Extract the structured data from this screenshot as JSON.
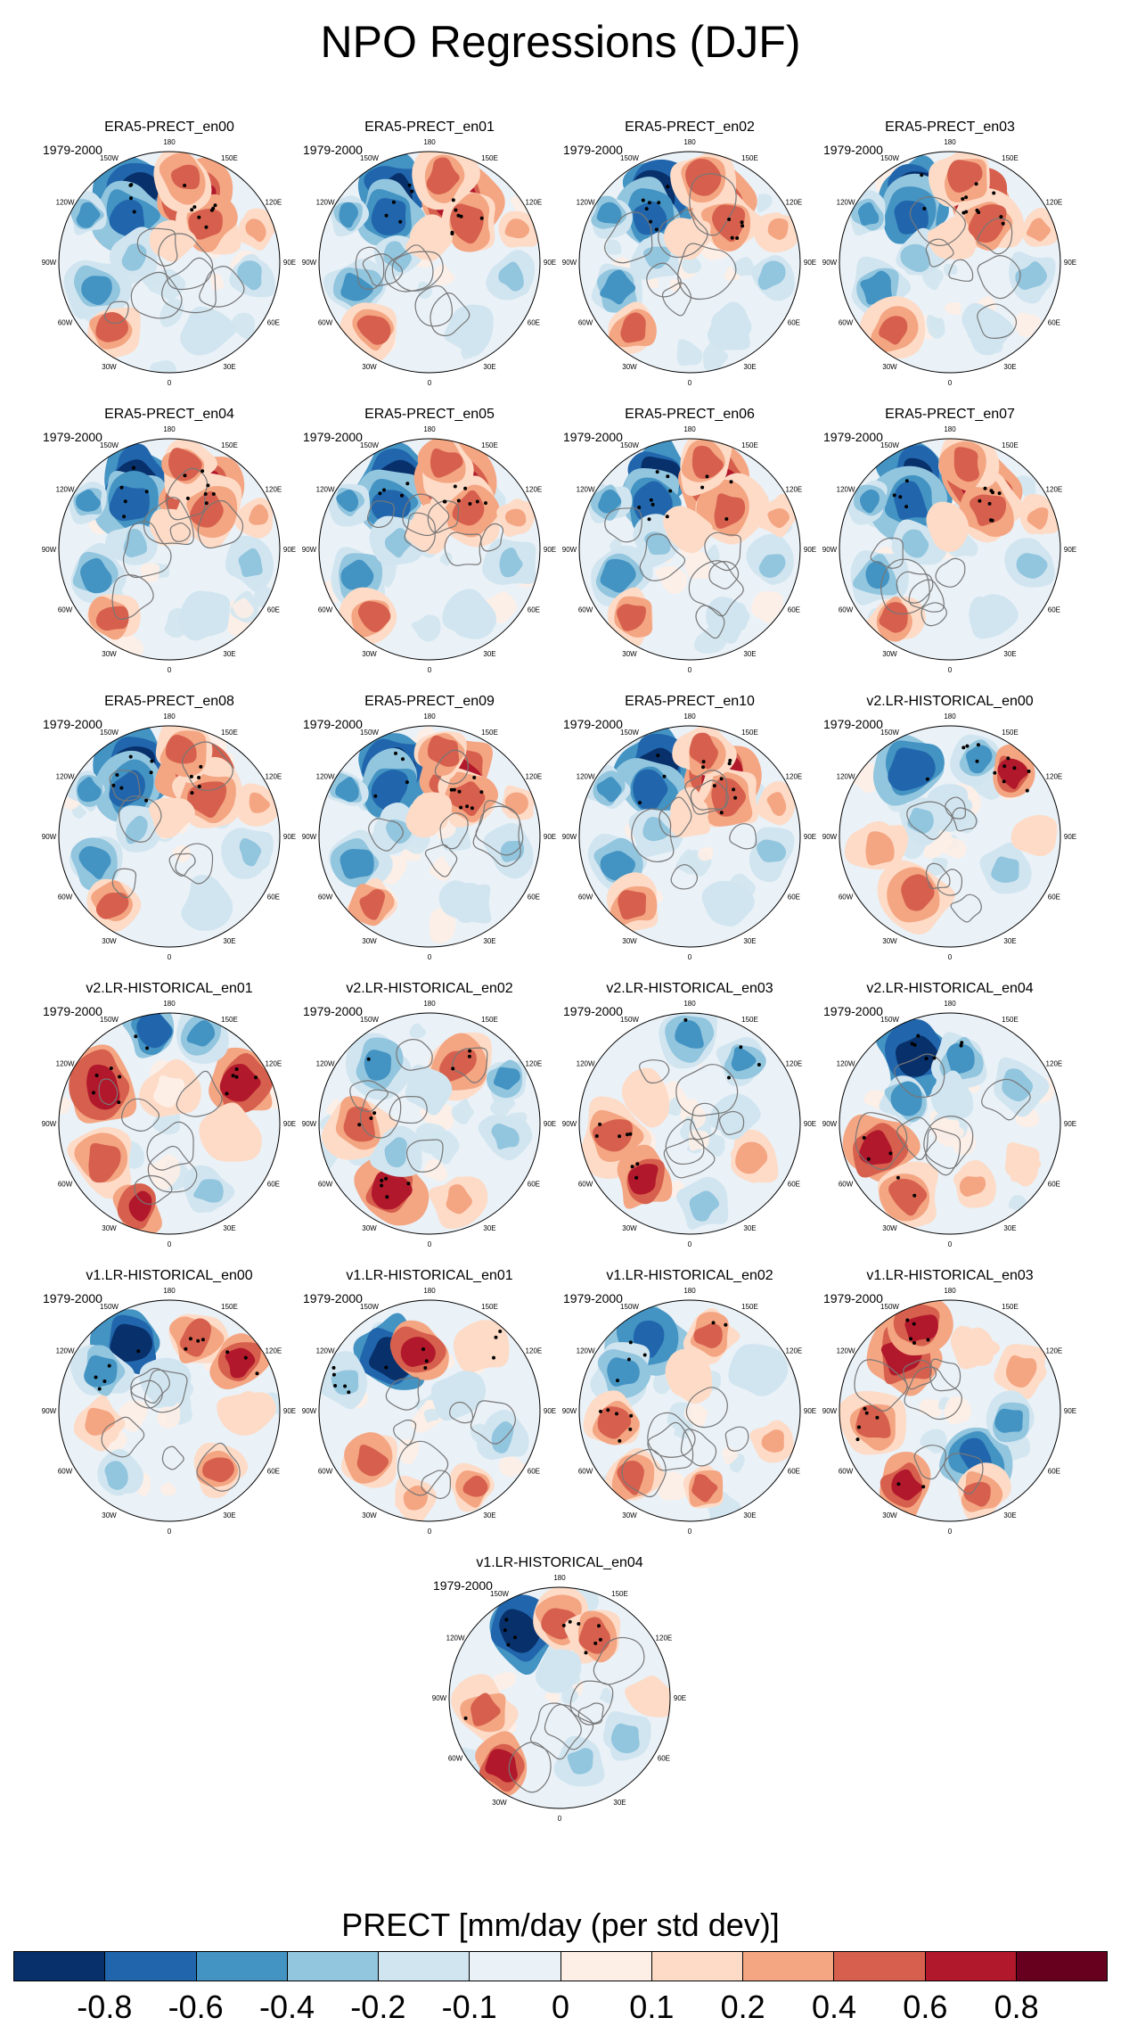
{
  "title": "NPO Regressions (DJF)",
  "period": "1979-2000",
  "lon_labels": [
    "180",
    "150E",
    "120E",
    "90E",
    "60E",
    "30E",
    "0",
    "30W",
    "60W",
    "90W",
    "120W",
    "150W"
  ],
  "lon_label_angles_deg": [
    180,
    150,
    120,
    90,
    60,
    30,
    0,
    -30,
    -60,
    -90,
    -120,
    -150
  ],
  "panels": [
    {
      "name": "ERA5-PRECT_en00",
      "pattern": "era5"
    },
    {
      "name": "ERA5-PRECT_en01",
      "pattern": "era5"
    },
    {
      "name": "ERA5-PRECT_en02",
      "pattern": "era5"
    },
    {
      "name": "ERA5-PRECT_en03",
      "pattern": "era5"
    },
    {
      "name": "ERA5-PRECT_en04",
      "pattern": "era5"
    },
    {
      "name": "ERA5-PRECT_en05",
      "pattern": "era5"
    },
    {
      "name": "ERA5-PRECT_en06",
      "pattern": "era5"
    },
    {
      "name": "ERA5-PRECT_en07",
      "pattern": "era5"
    },
    {
      "name": "ERA5-PRECT_en08",
      "pattern": "era5"
    },
    {
      "name": "ERA5-PRECT_en09",
      "pattern": "era5"
    },
    {
      "name": "ERA5-PRECT_en10",
      "pattern": "era5"
    },
    {
      "name": "v2.LR-HISTORICAL_en00",
      "pattern": "v2a"
    },
    {
      "name": "v2.LR-HISTORICAL_en01",
      "pattern": "v2b"
    },
    {
      "name": "v2.LR-HISTORICAL_en02",
      "pattern": "v2c"
    },
    {
      "name": "v2.LR-HISTORICAL_en03",
      "pattern": "v2d"
    },
    {
      "name": "v2.LR-HISTORICAL_en04",
      "pattern": "v2e"
    },
    {
      "name": "v1.LR-HISTORICAL_en00",
      "pattern": "v1a"
    },
    {
      "name": "v1.LR-HISTORICAL_en01",
      "pattern": "v1b"
    },
    {
      "name": "v1.LR-HISTORICAL_en02",
      "pattern": "v1c"
    },
    {
      "name": "v1.LR-HISTORICAL_en03",
      "pattern": "v1d"
    },
    {
      "name": "v1.LR-HISTORICAL_en04",
      "pattern": "v1e"
    }
  ],
  "colorbar": {
    "title": "PRECT [mm/day (per std dev)]",
    "colors": [
      "#08306b",
      "#2166ac",
      "#4393c3",
      "#92c5de",
      "#d1e5f0",
      "#eaf1f7",
      "#fdeee6",
      "#fddbc7",
      "#f4a582",
      "#d6604d",
      "#b2182b",
      "#67001f"
    ],
    "tick_labels": [
      "-0.8",
      "-0.6",
      "-0.4",
      "-0.2",
      "-0.1",
      "0",
      "0.1",
      "0.2",
      "0.4",
      "0.6",
      "0.8"
    ]
  }
}
